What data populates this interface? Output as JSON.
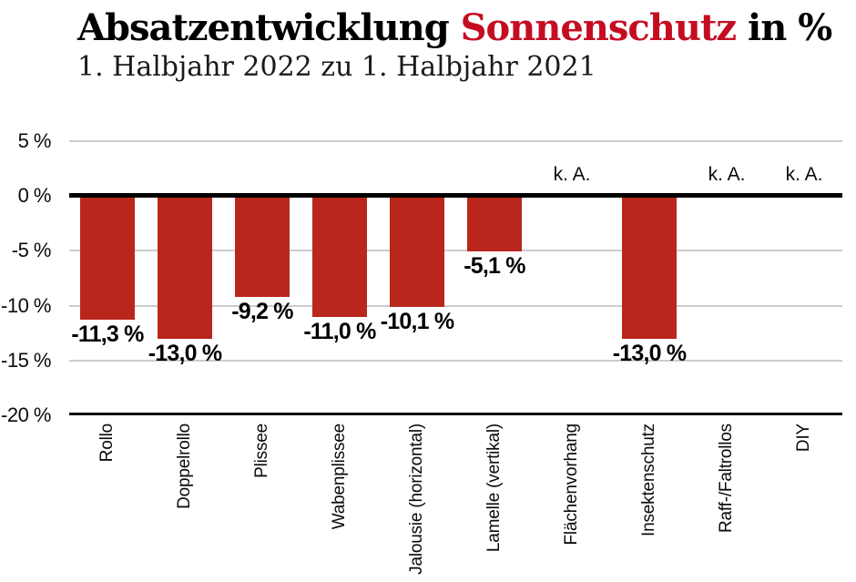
{
  "header": {
    "title_part1": "Absatzentwicklung ",
    "title_accent": "Sonnenschutz",
    "title_part2": " in %",
    "subtitle": "1. Halbjahr 2022 zu 1. Halbjahr 2021"
  },
  "colors": {
    "bar": "#b9261c",
    "title_accent": "#c50d22",
    "gridline": "#cccccc",
    "zero_line": "#000000",
    "base_line": "#111111"
  },
  "chart_data": {
    "type": "bar",
    "title": "Absatzentwicklung Sonnenschutz in %",
    "subtitle": "1. Halbjahr 2022 zu 1. Halbjahr 2021",
    "categories": [
      "Rollo",
      "Doppelrollo",
      "Plissee",
      "Wabenplissee",
      "Jalousie (horizontal)",
      "Lamelle (vertikal)",
      "Flächenvorhang",
      "Insektenschutz",
      "Raff-/Faltrollos",
      "DIY"
    ],
    "values": [
      -11.3,
      -13.0,
      -9.2,
      -11.0,
      -10.1,
      -5.1,
      null,
      -13.0,
      null,
      null
    ],
    "value_labels": [
      "-11,3 %",
      "-13,0 %",
      "-9,2 %",
      "-11,0 %",
      "-10,1 %",
      "-5,1 %",
      "k. A.",
      "-13,0 %",
      "k. A.",
      "k. A."
    ],
    "no_data_label": "k. A.",
    "unit": "%",
    "xlabel": "",
    "ylabel": "",
    "ylim": [
      -20,
      5
    ],
    "yticks": [
      5,
      0,
      -5,
      -10,
      -15,
      -20
    ],
    "ytick_labels": [
      "5 %",
      "0 %",
      "-5 %",
      "-10 %",
      "-15 %",
      "-20 %"
    ],
    "grid": true,
    "legend": false,
    "bar_color": "#b9261c"
  }
}
